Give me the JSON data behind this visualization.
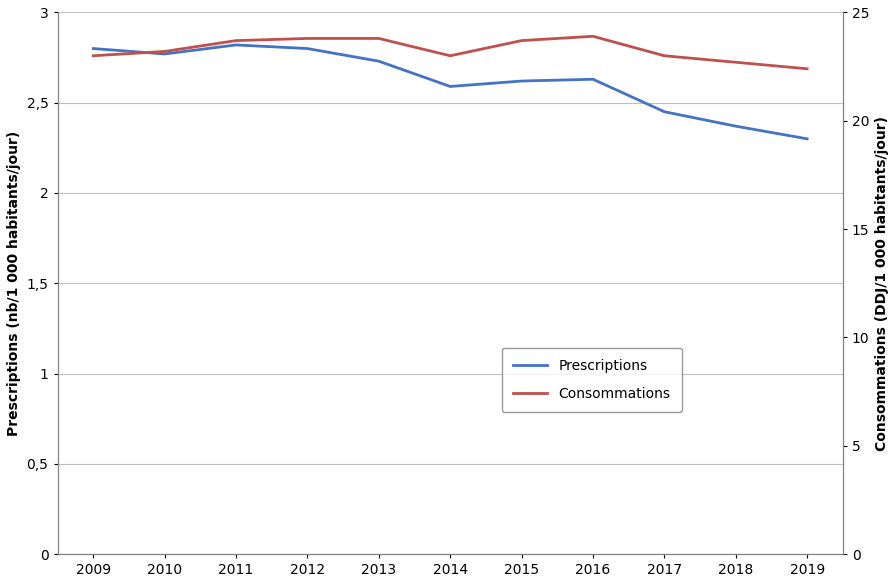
{
  "years": [
    2009,
    2010,
    2011,
    2012,
    2013,
    2014,
    2015,
    2016,
    2017,
    2018,
    2019
  ],
  "prescriptions": [
    2.8,
    2.77,
    2.82,
    2.8,
    2.73,
    2.59,
    2.62,
    2.63,
    2.45,
    2.37,
    2.3
  ],
  "consommations": [
    23.0,
    23.2,
    23.7,
    23.8,
    23.8,
    23.0,
    23.7,
    23.9,
    23.0,
    22.7,
    22.4
  ],
  "prescriptions_color": "#4472C4",
  "consommations_color": "#C0504D",
  "ylabel_left_bold": "Prescriptions",
  "ylabel_left_rest": " (nb/1 000 habitants/jour)",
  "ylabel_right_bold": "Consommations",
  "ylabel_right_rest": " (DDJ/1 000 habitants/jour)",
  "ylim_left": [
    0,
    3
  ],
  "ylim_right": [
    0,
    25
  ],
  "yticks_left": [
    0,
    0.5,
    1,
    1.5,
    2,
    2.5,
    3
  ],
  "yticks_right": [
    0,
    5,
    10,
    15,
    20,
    25
  ],
  "legend_prescriptions": "Prescriptions",
  "legend_consommations": "Consommations",
  "line_width": 2.0,
  "grid_color": "#C0C0C0",
  "spine_color": "#808080"
}
